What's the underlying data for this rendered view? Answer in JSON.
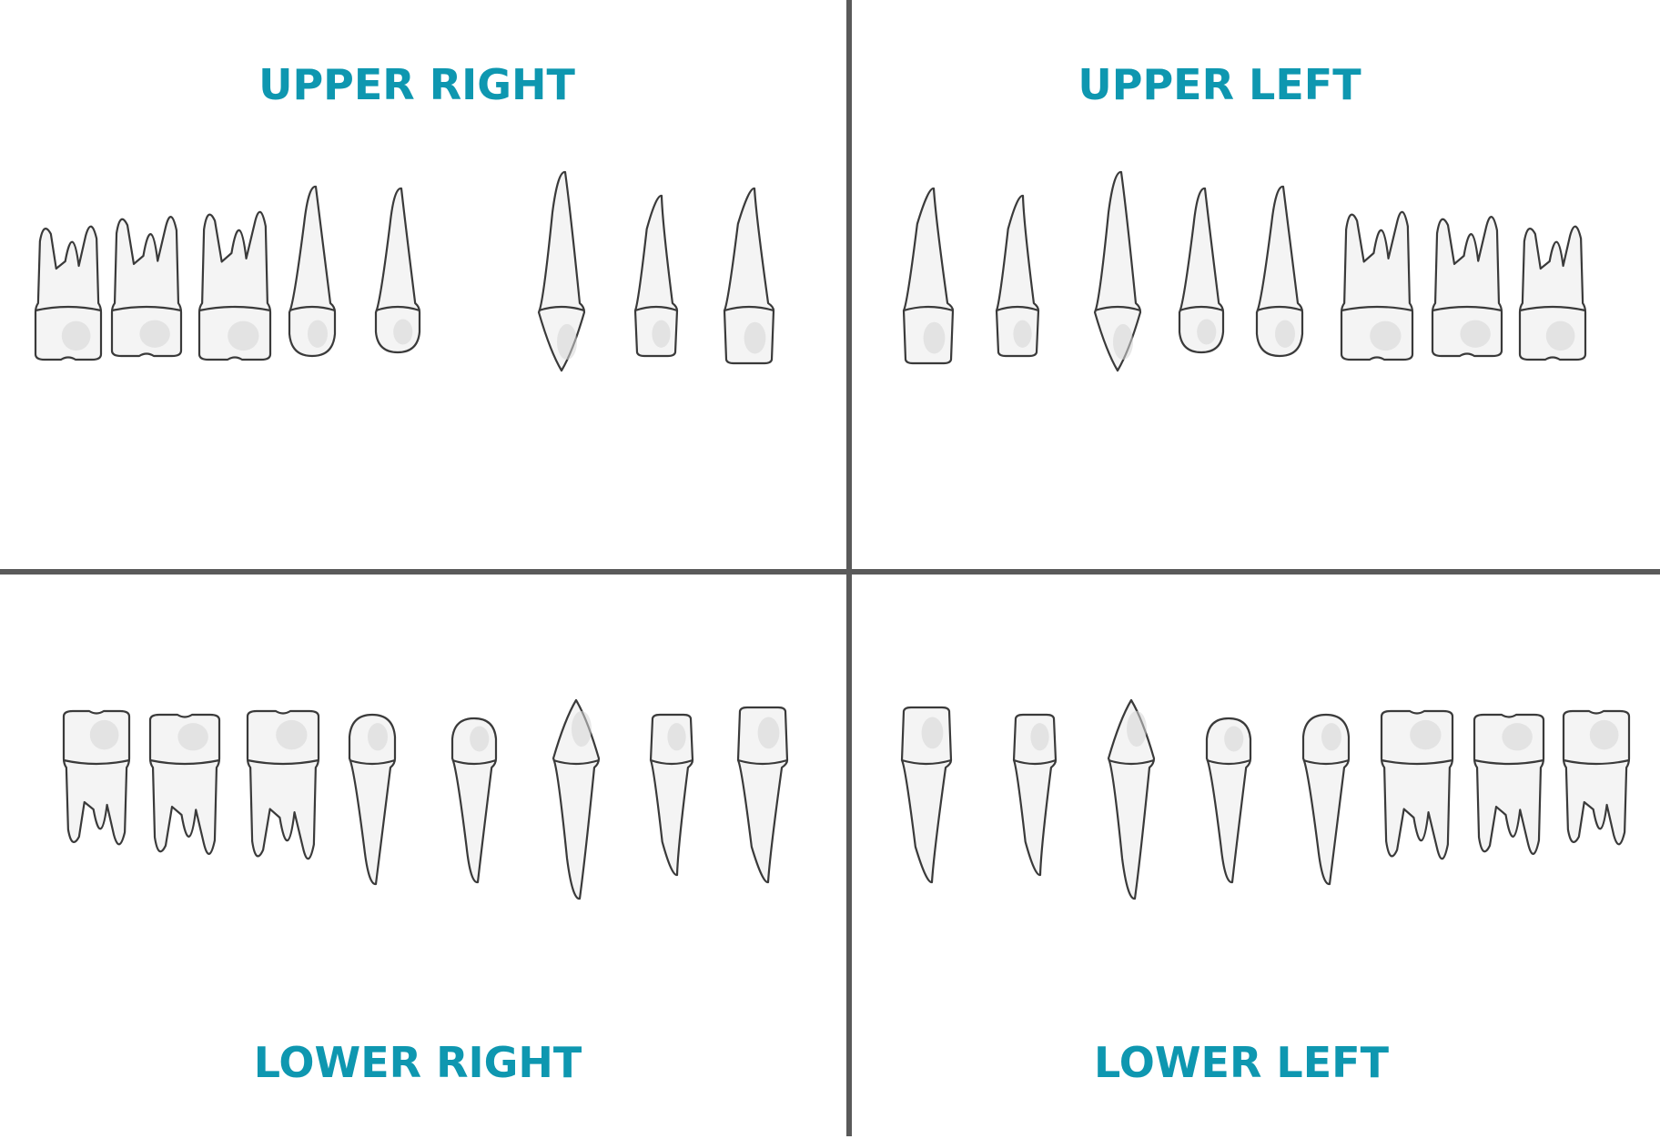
{
  "colors": {
    "label": "#0e97b0",
    "divider": "#5a5a5a",
    "tooth_fill": "#f4f4f4",
    "tooth_outline": "#3a3a3a"
  },
  "quadrants": {
    "upper_right": {
      "label": "UPPER RIGHT",
      "teeth": [
        "molar3",
        "molar2",
        "molar1",
        "premolar2",
        "premolar1",
        "canine",
        "incisor-lateral",
        "incisor-central"
      ]
    },
    "upper_left": {
      "label": "UPPER LEFT",
      "teeth": [
        "incisor-central",
        "incisor-lateral",
        "canine",
        "premolar1",
        "premolar2",
        "molar1",
        "molar2",
        "molar3"
      ]
    },
    "lower_right": {
      "label": "LOWER RIGHT",
      "teeth": [
        "molar3",
        "molar2",
        "molar1",
        "premolar2",
        "premolar1",
        "canine",
        "incisor-lateral",
        "incisor-central"
      ]
    },
    "lower_left": {
      "label": "LOWER LEFT",
      "teeth": [
        "incisor-central",
        "incisor-lateral",
        "canine",
        "premolar1",
        "premolar2",
        "molar1",
        "molar2",
        "molar3"
      ]
    }
  }
}
